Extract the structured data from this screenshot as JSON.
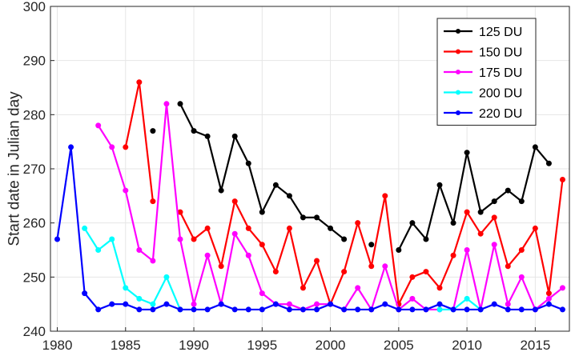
{
  "chart_data": {
    "type": "line",
    "title": "",
    "xlabel": "",
    "ylabel": "Start date in Julian day",
    "xlim": [
      1979.5,
      2017.5
    ],
    "ylim": [
      240,
      300
    ],
    "xticks": [
      1980,
      1985,
      1990,
      1995,
      2000,
      2005,
      2010,
      2015
    ],
    "yticks": [
      240,
      250,
      260,
      270,
      280,
      290,
      300
    ],
    "grid": true,
    "legend_position": "top-right",
    "series": [
      {
        "name": "125 DU",
        "color": "#000000",
        "x": [
          1987,
          1989,
          1990,
          1991,
          1992,
          1993,
          1994,
          1995,
          1996,
          1997,
          1998,
          1999,
          2000,
          2001,
          2003,
          2005,
          2006,
          2007,
          2008,
          2009,
          2010,
          2011,
          2012,
          2013,
          2014,
          2015,
          2016
        ],
        "y": [
          277,
          282,
          277,
          276,
          266,
          276,
          271,
          262,
          267,
          265,
          261,
          261,
          259,
          257,
          256,
          255,
          260,
          257,
          267,
          260,
          273,
          262,
          264,
          266,
          264,
          274,
          271
        ]
      },
      {
        "name": "150 DU",
        "color": "#ff0000",
        "x": [
          1985,
          1986,
          1987,
          1989,
          1990,
          1991,
          1992,
          1993,
          1994,
          1995,
          1996,
          1997,
          1998,
          1999,
          2000,
          2001,
          2002,
          2003,
          2004,
          2005,
          2006,
          2007,
          2008,
          2009,
          2010,
          2011,
          2012,
          2013,
          2014,
          2015,
          2016,
          2017
        ],
        "y": [
          274,
          286,
          264,
          262,
          257,
          259,
          252,
          264,
          259,
          256,
          251,
          259,
          248,
          253,
          245,
          251,
          260,
          252,
          265,
          245,
          250,
          251,
          248,
          254,
          262,
          258,
          261,
          252,
          255,
          259,
          247,
          268
        ]
      },
      {
        "name": "175 DU",
        "color": "#ff00ff",
        "x": [
          1983,
          1984,
          1985,
          1986,
          1987,
          1988,
          1989,
          1990,
          1991,
          1992,
          1993,
          1994,
          1995,
          1996,
          1997,
          1998,
          1999,
          2000,
          2001,
          2002,
          2003,
          2004,
          2005,
          2006,
          2007,
          2008,
          2009,
          2010,
          2011,
          2012,
          2013,
          2014,
          2015,
          2016,
          2017
        ],
        "y": [
          278,
          274,
          266,
          255,
          253,
          282,
          257,
          245,
          254,
          245,
          258,
          254,
          247,
          245,
          245,
          244,
          245,
          245,
          244,
          248,
          244,
          252,
          244,
          246,
          244,
          244,
          244,
          255,
          244,
          256,
          245,
          250,
          244,
          246,
          248
        ]
      },
      {
        "name": "200 DU",
        "color": "#00ffff",
        "x": [
          1982,
          1983,
          1984,
          1985,
          1986,
          1987,
          1988,
          1989,
          2008,
          2009,
          2010,
          2011
        ],
        "y": [
          259,
          255,
          257,
          248,
          246,
          245,
          250,
          244,
          244,
          244,
          246,
          244
        ]
      },
      {
        "name": "220 DU",
        "color": "#0000ff",
        "x": [
          1980,
          1981,
          1982,
          1983,
          1984,
          1985,
          1986,
          1987,
          1988,
          1989,
          1990,
          1991,
          1992,
          1993,
          1994,
          1995,
          1996,
          1997,
          1998,
          1999,
          2000,
          2001,
          2002,
          2003,
          2004,
          2005,
          2006,
          2007,
          2008,
          2009,
          2010,
          2011,
          2012,
          2013,
          2014,
          2015,
          2016,
          2017
        ],
        "y": [
          257,
          274,
          247,
          244,
          245,
          245,
          244,
          244,
          245,
          244,
          244,
          244,
          245,
          244,
          244,
          244,
          245,
          244,
          244,
          244,
          245,
          244,
          244,
          244,
          245,
          244,
          244,
          244,
          245,
          244,
          244,
          244,
          245,
          244,
          244,
          244,
          245,
          244
        ]
      }
    ]
  }
}
